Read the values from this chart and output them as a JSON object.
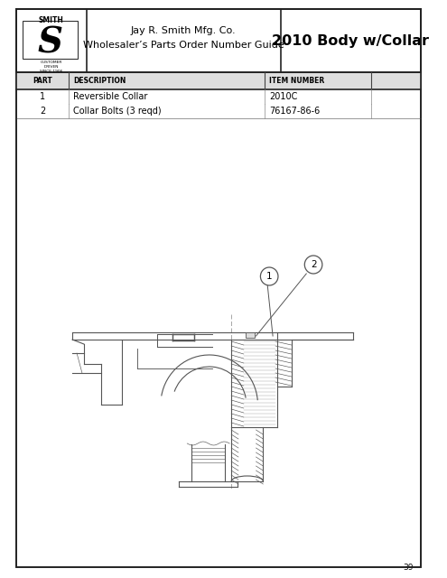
{
  "title_center": "Jay R. Smith Mfg. Co.\nWholesaler’s Parts Order Number Guide",
  "title_right": "2010 Body w/Collar",
  "col_headers": [
    "PART",
    "DESCRIPTION",
    "ITEM NUMBER"
  ],
  "rows": [
    [
      "1",
      "Reversible Collar",
      "2010C"
    ],
    [
      "2",
      "Collar Bolts (3 reqd)",
      "76167-86-6"
    ]
  ],
  "page_number": "39",
  "bg_color": "#ffffff",
  "lc": "#444444",
  "lc_light": "#888888"
}
